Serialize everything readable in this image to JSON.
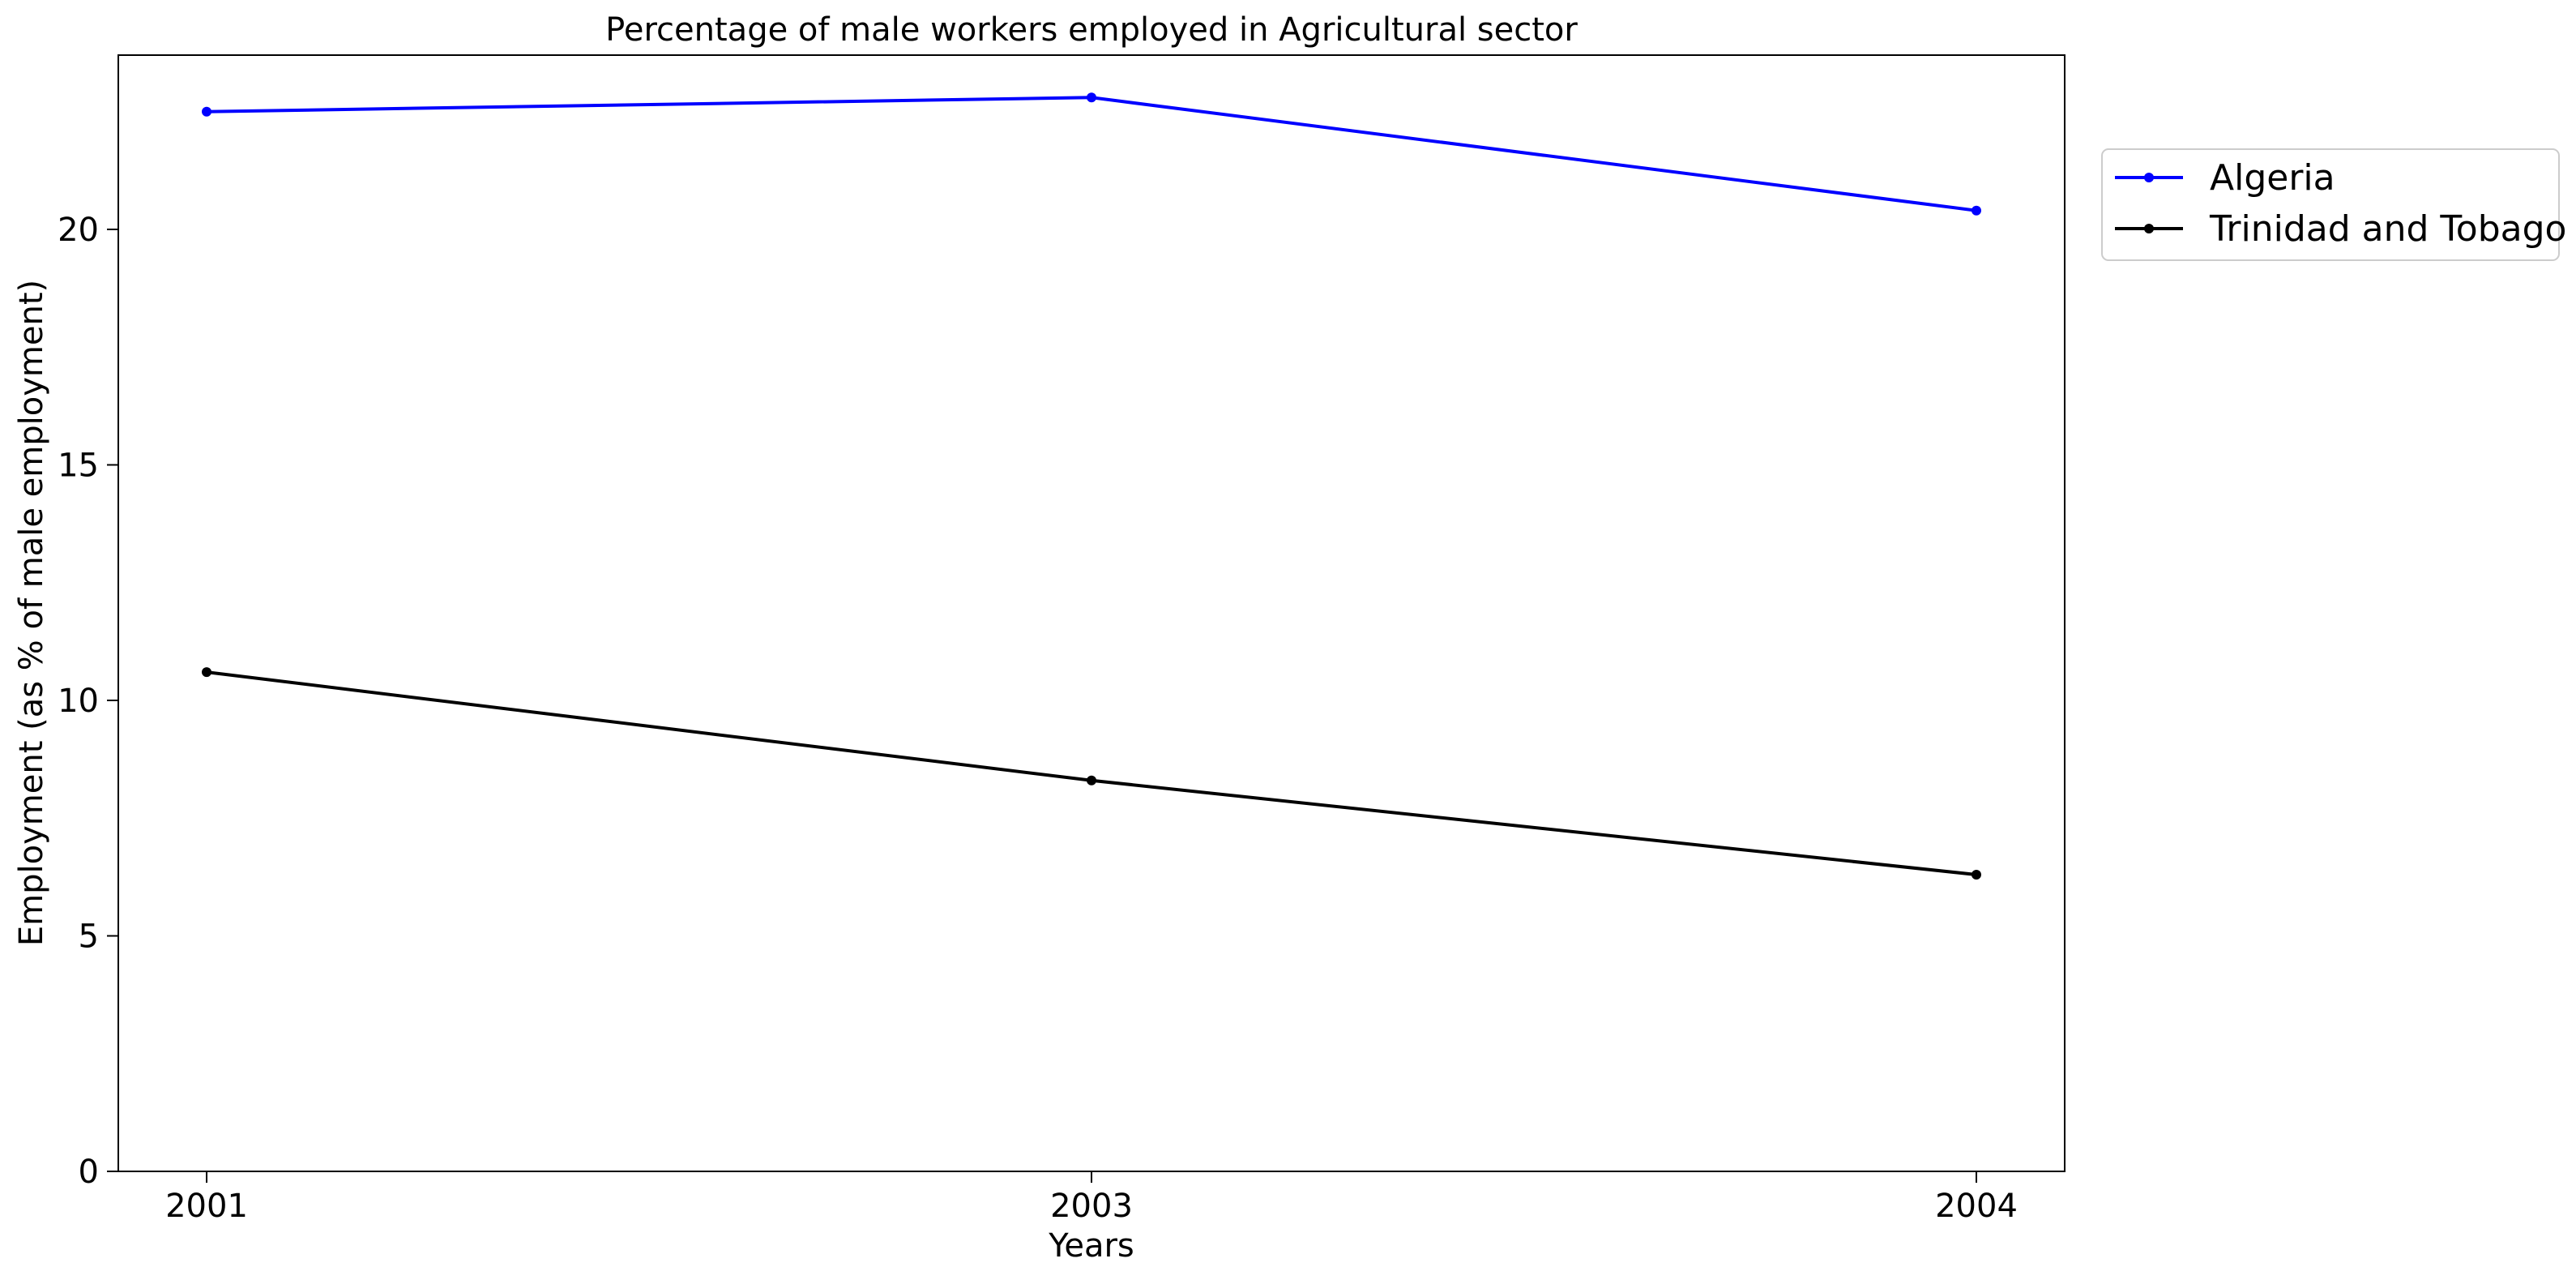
{
  "chart_data": {
    "type": "line",
    "title": "Percentage of male workers employed in Agricultural sector",
    "xlabel": "Years",
    "ylabel": "Employment (as % of male employment)",
    "categories": [
      "2001",
      "2003",
      "2004"
    ],
    "ylim": [
      0,
      23.7
    ],
    "yticks": [
      0,
      5,
      10,
      15,
      20
    ],
    "grid": false,
    "legend_position": "outside-top-right",
    "series": [
      {
        "name": "Algeria",
        "values": [
          22.5,
          22.8,
          20.4
        ],
        "color": "#0000ff"
      },
      {
        "name": "Trinidad and Tobago",
        "values": [
          10.6,
          8.3,
          6.3
        ],
        "color": "#000000"
      }
    ]
  }
}
